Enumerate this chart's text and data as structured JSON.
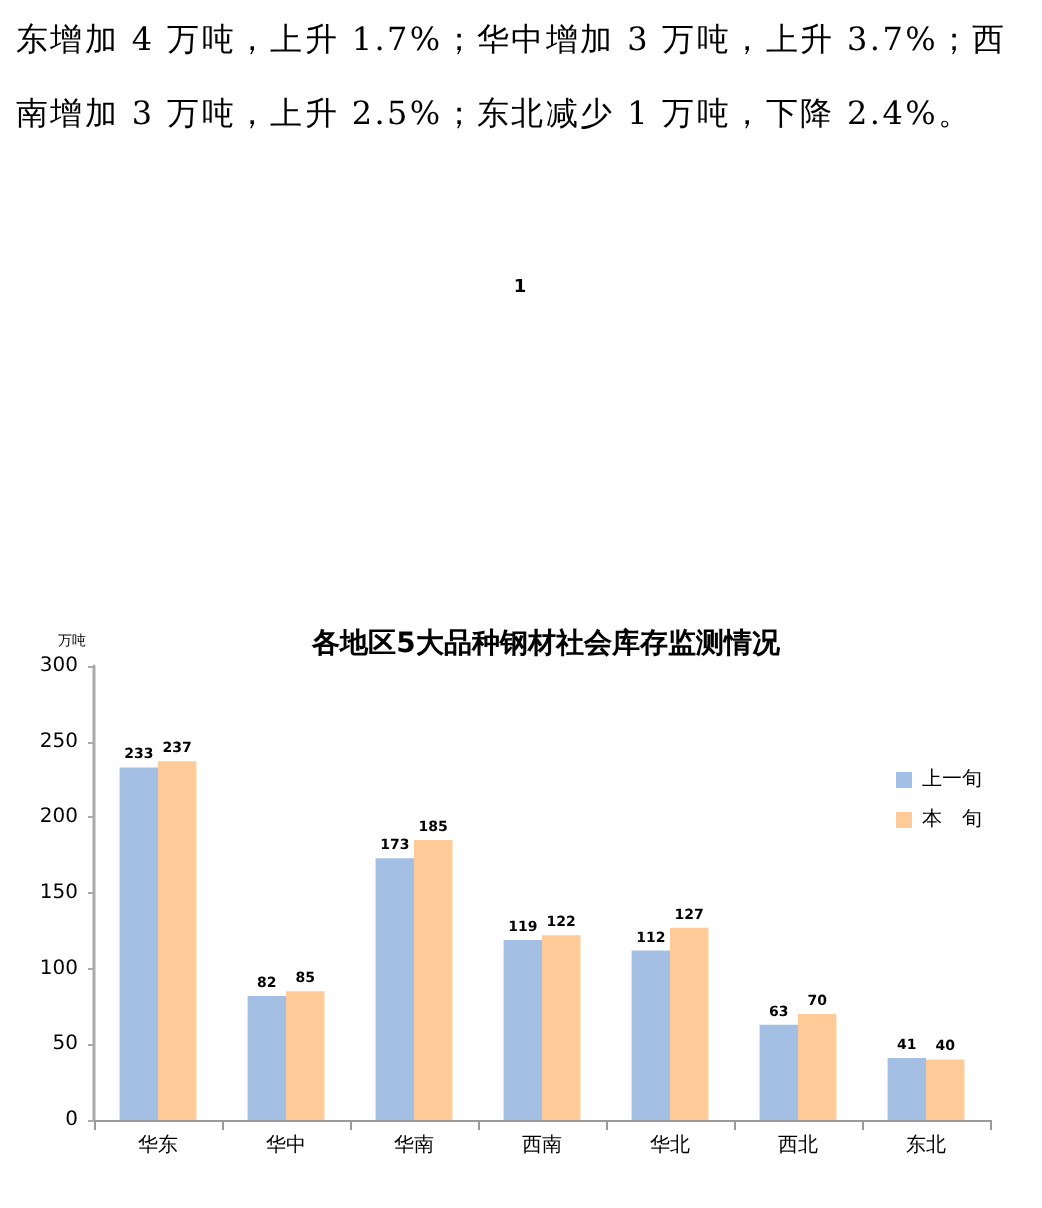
{
  "chart_data": {
    "type": "bar",
    "title": "各地区5大品种钢材社会库存监测情况",
    "ylabel": "万吨",
    "annotations": [
      "东增加 4 万吨，上升 1.7%；华中增加 3 万吨，上升 3.7%；西",
      "南增加 3 万吨，上升 2.5%；东北减少 1 万吨，下降 2.4%。",
      "1"
    ],
    "categories": [
      "华东",
      "华中",
      "华南",
      "西南",
      "华北",
      "西北",
      "东北"
    ],
    "series": [
      {
        "name": "上一旬",
        "color": "#a3bfe3",
        "values": [
          233,
          82,
          173,
          119,
          112,
          63,
          41
        ]
      },
      {
        "name": "本　旬",
        "color": "#fecb98",
        "values": [
          237,
          85,
          185,
          122,
          127,
          70,
          40
        ]
      }
    ],
    "ylim": [
      0,
      300
    ],
    "yticks": [
      0,
      50,
      100,
      150,
      200,
      250,
      300
    ],
    "data_labels": true,
    "legend": "right"
  }
}
